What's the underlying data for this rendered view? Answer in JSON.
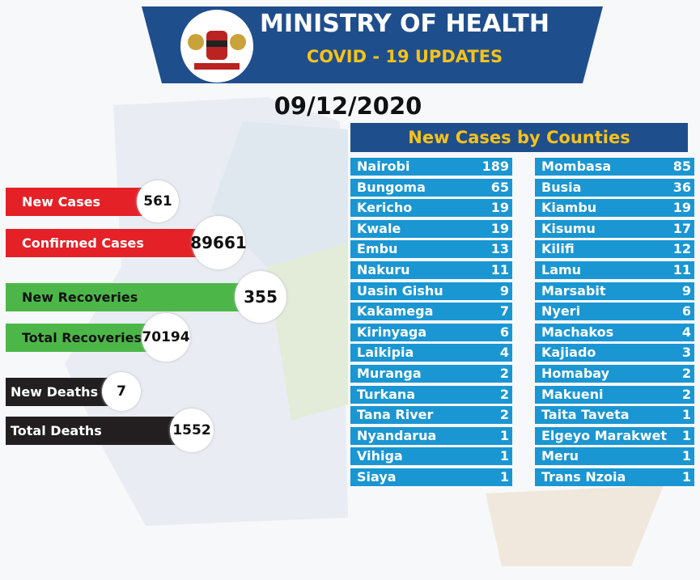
{
  "header": {
    "title": "MINISTRY OF HEALTH",
    "subtitle": "COVID - 19 UPDATES"
  },
  "date": "09/12/2020",
  "summary": [
    {
      "label": "New Cases",
      "value": 561
    },
    {
      "label": "Confirmed Cases",
      "value": 89661
    },
    {
      "label": "New Recoveries",
      "value": 355
    },
    {
      "label": "Total Recoveries",
      "value": 70194
    },
    {
      "label": "New Deaths",
      "value": 7
    },
    {
      "label": "Total Deaths",
      "value": 1552
    }
  ],
  "counties": {
    "title": "New Cases by Counties",
    "left": [
      {
        "name": "Nairobi",
        "cases": 189
      },
      {
        "name": "Bungoma",
        "cases": 65
      },
      {
        "name": "Kericho",
        "cases": 19
      },
      {
        "name": "Kwale",
        "cases": 19
      },
      {
        "name": "Embu",
        "cases": 13
      },
      {
        "name": "Nakuru",
        "cases": 11
      },
      {
        "name": "Uasin Gishu",
        "cases": 9
      },
      {
        "name": "Kakamega",
        "cases": 7
      },
      {
        "name": "Kirinyaga",
        "cases": 6
      },
      {
        "name": "Laikipia",
        "cases": 4
      },
      {
        "name": "Muranga",
        "cases": 2
      },
      {
        "name": "Turkana",
        "cases": 2
      },
      {
        "name": "Tana River",
        "cases": 2
      },
      {
        "name": "Nyandarua",
        "cases": 1
      },
      {
        "name": "Vihiga",
        "cases": 1
      },
      {
        "name": "Siaya",
        "cases": 1
      }
    ],
    "right": [
      {
        "name": "Mombasa",
        "cases": 85
      },
      {
        "name": "Busia",
        "cases": 36
      },
      {
        "name": "Kiambu",
        "cases": 19
      },
      {
        "name": "Kisumu",
        "cases": 17
      },
      {
        "name": "Kilifi",
        "cases": 12
      },
      {
        "name": "Lamu",
        "cases": 11
      },
      {
        "name": "Marsabit",
        "cases": 9
      },
      {
        "name": "Nyeri",
        "cases": 6
      },
      {
        "name": "Machakos",
        "cases": 4
      },
      {
        "name": "Kajiado",
        "cases": 3
      },
      {
        "name": "Homabay",
        "cases": 2
      },
      {
        "name": "Makueni",
        "cases": 2
      },
      {
        "name": "Taita Taveta",
        "cases": 1
      },
      {
        "name": "Elgeyo Marakwet",
        "cases": 1
      },
      {
        "name": "Meru",
        "cases": 1
      },
      {
        "name": "Trans Nzoia",
        "cases": 1
      }
    ]
  }
}
